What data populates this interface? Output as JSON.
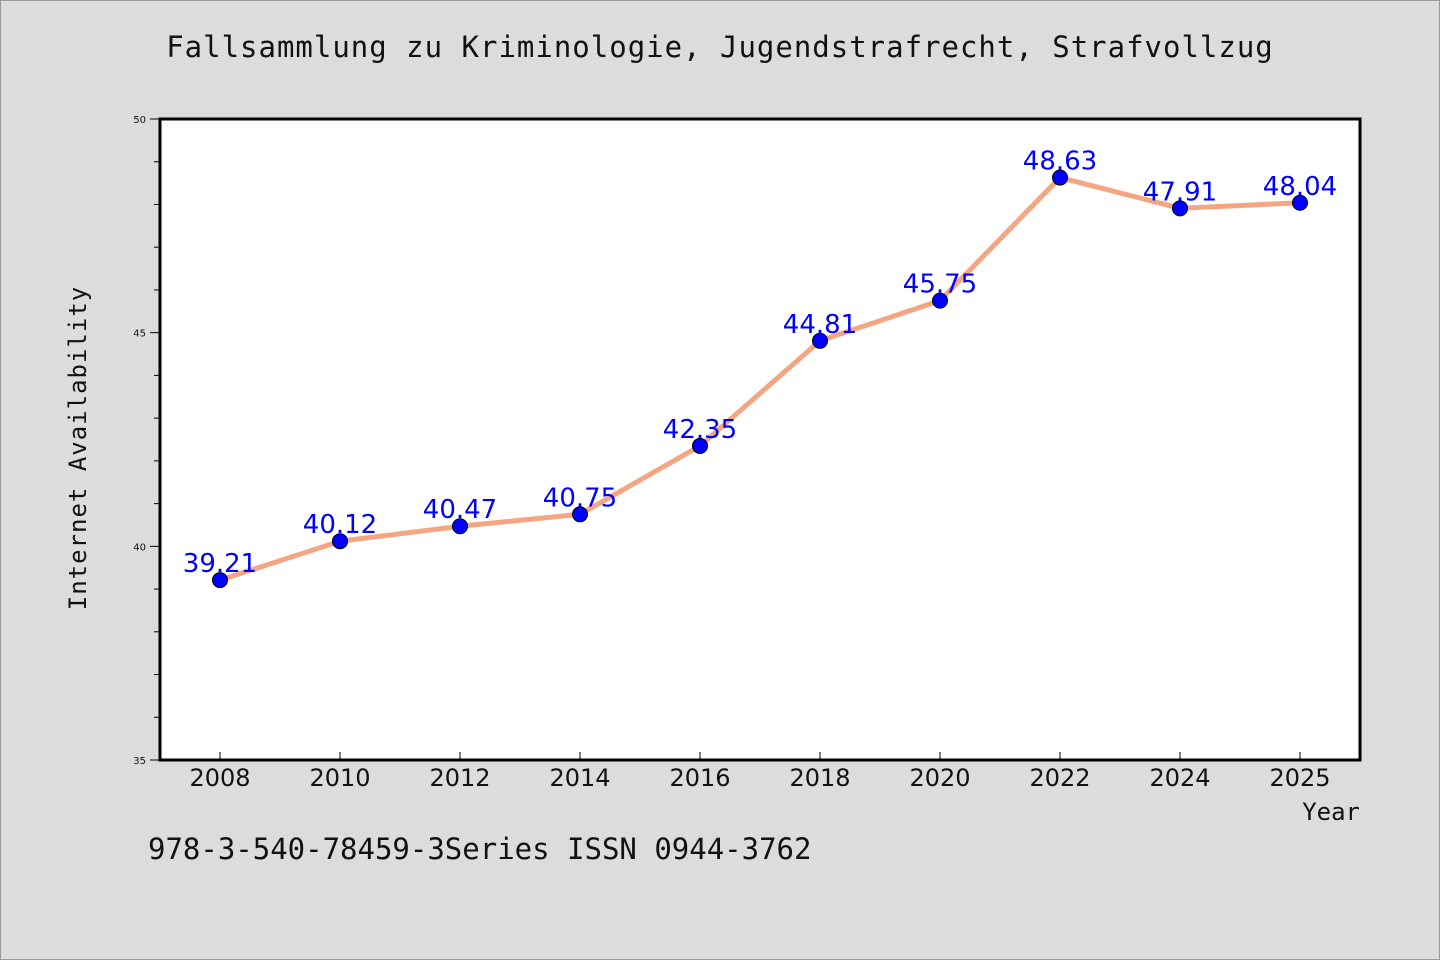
{
  "chart_data": {
    "type": "line",
    "title": "Fallsammlung zu Kriminologie, Jugendstrafrecht, Strafvollzug",
    "xlabel": "Year",
    "ylabel": "Internet Availability",
    "x": [
      "2008",
      "2010",
      "2012",
      "2014",
      "2016",
      "2018",
      "2020",
      "2022",
      "2024",
      "2025"
    ],
    "series": [
      {
        "values": [
          39.21,
          40.12,
          40.47,
          40.75,
          42.35,
          44.81,
          45.75,
          48.63,
          47.91,
          48.04
        ],
        "labels": [
          "39.21",
          "40.12",
          "40.47",
          "40.75",
          "42.35",
          "44.81",
          "45.75",
          "48.63",
          "47.91",
          "48.04"
        ]
      }
    ],
    "ylim": [
      35,
      50
    ],
    "yticks": [
      "35",
      "40",
      "45",
      "50"
    ],
    "grid": false,
    "legend": "none",
    "colors": {
      "line": "#f4a582",
      "marker": "#0000ff",
      "label": "#0000ff"
    }
  },
  "footer": "978-3-540-78459-3Series ISSN 0944-3762"
}
